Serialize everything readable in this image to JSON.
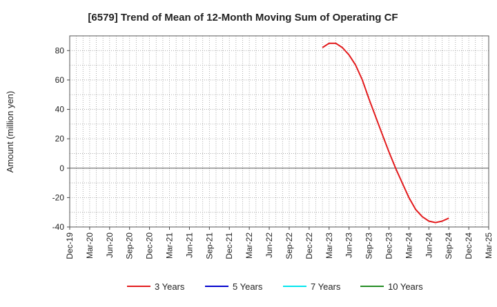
{
  "chart_data": {
    "type": "line",
    "title": "[6579]  Trend of Mean of 12-Month Moving Sum of Operating CF",
    "ylabel": "Amount (million yen)",
    "xlabel": "",
    "ylim": [
      -40,
      90
    ],
    "yticks": [
      -40,
      -20,
      0,
      20,
      40,
      60,
      80
    ],
    "ytick_labels": [
      "-40",
      "-20",
      "0",
      "20",
      "40",
      "60",
      "80"
    ],
    "x_range": [
      "Dec-19",
      "Mar-25"
    ],
    "xtick_labels": [
      "Dec-19",
      "Mar-20",
      "Jun-20",
      "Sep-20",
      "Dec-20",
      "Mar-21",
      "Jun-21",
      "Sep-21",
      "Dec-21",
      "Mar-22",
      "Jun-22",
      "Sep-22",
      "Dec-22",
      "Mar-23",
      "Jun-23",
      "Sep-23",
      "Dec-23",
      "Mar-24",
      "Jun-24",
      "Sep-24",
      "Dec-24",
      "Mar-25"
    ],
    "grid": true,
    "legend_position": "bottom",
    "series": [
      {
        "name": "3 Years",
        "color": "#e31a1c",
        "x": [
          "Feb-23",
          "Mar-23",
          "Apr-23",
          "May-23",
          "Jun-23",
          "Jul-23",
          "Aug-23",
          "Sep-23",
          "Oct-23",
          "Nov-23",
          "Dec-23",
          "Jan-24",
          "Feb-24",
          "Mar-24",
          "Apr-24",
          "May-24",
          "Jun-24",
          "Jul-24",
          "Aug-24",
          "Sep-24"
        ],
        "values": [
          82,
          85,
          85,
          82,
          77,
          70,
          60,
          47,
          35,
          23,
          11,
          0,
          -10,
          -20,
          -28,
          -33,
          -36,
          -37,
          -36,
          -34
        ]
      },
      {
        "name": "5 Years",
        "color": "#0000cc",
        "x": [],
        "values": []
      },
      {
        "name": "7 Years",
        "color": "#00e5ee",
        "x": [],
        "values": []
      },
      {
        "name": "10 Years",
        "color": "#228b22",
        "x": [],
        "values": []
      }
    ]
  }
}
